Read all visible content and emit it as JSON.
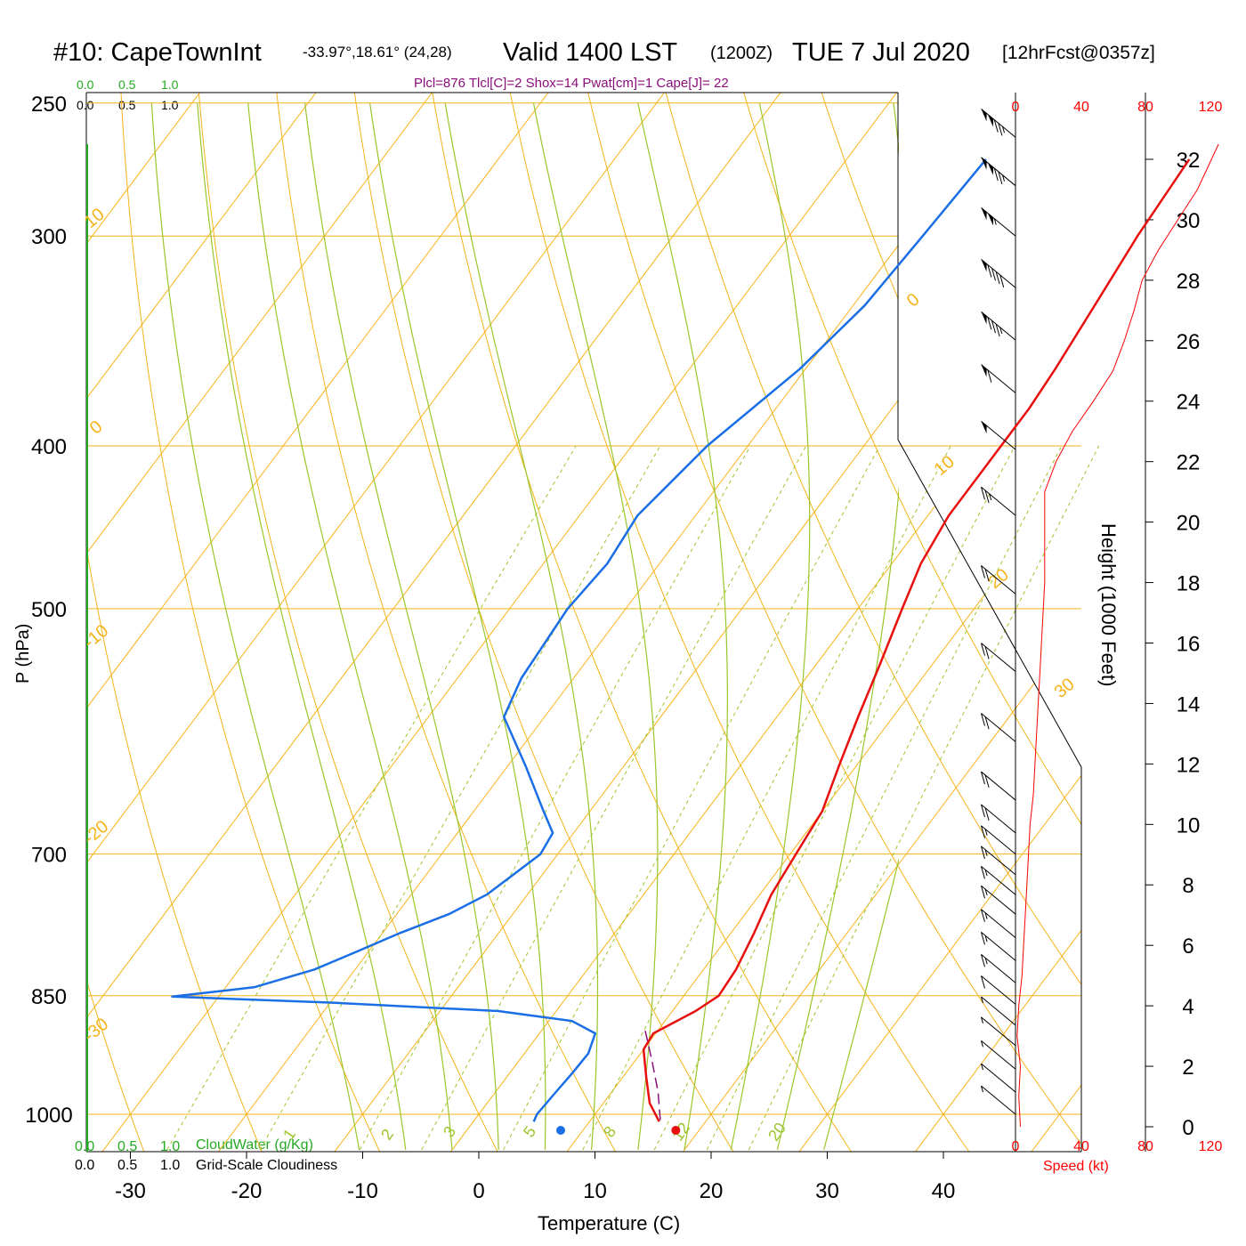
{
  "header": {
    "station": "#10: CapeTownInt",
    "coords": "-33.97°,18.61° (24,28)",
    "valid": "Valid 1400 LST",
    "zulu": "(1200Z)",
    "date": "TUE 7 Jul 2020",
    "forecast": "[12hrFcst@0357z]",
    "indices": "Plcl=876 Tlcl[C]=2 Shox=14 Pwat[cm]=1 Cape[J]= 22"
  },
  "colors": {
    "temperature": "#e8100f",
    "dewpoint": "#1a6ee6",
    "isotherm": "#f5b319",
    "moist_adiabat": "#9bc52a",
    "mixing_ratio": "#9bc52a",
    "parcel": "#8a0f7a",
    "speed": "#ff0000",
    "cloud": "#22aa22"
  },
  "chart_data": {
    "type": "line",
    "title": "#10: CapeTownInt",
    "xlabel": "Temperature (C)",
    "ylabel": "P (hPa)",
    "y2label": "Height (1000 Feet)",
    "xticks": [
      "-30",
      "-20",
      "-10",
      "0",
      "10",
      "20",
      "30",
      "40"
    ],
    "xtick_values": [
      -30,
      -20,
      -10,
      0,
      10,
      20,
      30,
      40
    ],
    "pressure_ticks": [
      "250",
      "300",
      "400",
      "500",
      "700",
      "850",
      "1000"
    ],
    "pressure_values": [
      250,
      300,
      400,
      500,
      700,
      850,
      1000
    ],
    "height_ticks": [
      "0",
      "2",
      "4",
      "6",
      "8",
      "10",
      "12",
      "14",
      "16",
      "18",
      "20",
      "22",
      "24",
      "26",
      "28",
      "30",
      "32"
    ],
    "height_values": [
      0,
      2,
      4,
      6,
      8,
      10,
      12,
      14,
      16,
      18,
      20,
      22,
      24,
      26,
      28,
      30,
      32
    ],
    "ylim": [
      1050,
      250
    ],
    "xlim": [
      -34,
      36
    ],
    "series": [
      {
        "name": "temperature",
        "points": [
          [
            16.0,
            1010
          ],
          [
            14.0,
            985
          ],
          [
            12.0,
            950
          ],
          [
            10.0,
            915
          ],
          [
            9.8,
            895
          ],
          [
            12.0,
            868
          ],
          [
            13.0,
            850
          ],
          [
            12.8,
            820
          ],
          [
            12.0,
            780
          ],
          [
            11.0,
            740
          ],
          [
            10.5,
            700
          ],
          [
            10.0,
            660
          ],
          [
            8.5,
            620
          ],
          [
            7.0,
            580
          ],
          [
            5.5,
            540
          ],
          [
            3.8,
            500
          ],
          [
            2.5,
            470
          ],
          [
            1.8,
            440
          ],
          [
            1.8,
            410
          ],
          [
            1.8,
            380
          ],
          [
            1.5,
            360
          ],
          [
            0.8,
            330
          ],
          [
            0.0,
            300
          ],
          [
            -0.5,
            270
          ]
        ]
      },
      {
        "name": "dewpoint",
        "points": [
          [
            5.2,
            1010
          ],
          [
            5.0,
            1000
          ],
          [
            5.2,
            970
          ],
          [
            5.4,
            945
          ],
          [
            5.5,
            920
          ],
          [
            4.8,
            895
          ],
          [
            2.0,
            880
          ],
          [
            -5.0,
            868
          ],
          [
            -20.0,
            858
          ],
          [
            -34.0,
            851
          ],
          [
            -27.5,
            840
          ],
          [
            -23.5,
            820
          ],
          [
            -21.0,
            800
          ],
          [
            -18.5,
            780
          ],
          [
            -15.5,
            760
          ],
          [
            -13.5,
            740
          ],
          [
            -12.5,
            720
          ],
          [
            -11.5,
            700
          ],
          [
            -11.8,
            680
          ],
          [
            -14.0,
            660
          ],
          [
            -18.5,
            620
          ],
          [
            -23.5,
            580
          ],
          [
            -24.5,
            550
          ],
          [
            -25.0,
            500
          ],
          [
            -24.5,
            470
          ],
          [
            -25.0,
            440
          ],
          [
            -23.5,
            400
          ],
          [
            -20.5,
            360
          ],
          [
            -19.0,
            330
          ],
          [
            -18.5,
            300
          ],
          [
            -18.0,
            270
          ]
        ]
      },
      {
        "name": "parcel",
        "points": [
          [
            16.0,
            1008
          ],
          [
            14.0,
            970
          ],
          [
            11.5,
            930
          ],
          [
            9.5,
            900
          ],
          [
            8.8,
            890
          ]
        ]
      },
      {
        "name": "wind_speed_kt",
        "points": [
          [
            3,
            0
          ],
          [
            2,
            1
          ],
          [
            3,
            2
          ],
          [
            1,
            3
          ],
          [
            2,
            4
          ],
          [
            4,
            5
          ],
          [
            5,
            6
          ],
          [
            6,
            7
          ],
          [
            7,
            8
          ],
          [
            8,
            9
          ],
          [
            9,
            10
          ],
          [
            11,
            11
          ],
          [
            12,
            12
          ],
          [
            13,
            13
          ],
          [
            14,
            14
          ],
          [
            15,
            15
          ],
          [
            16,
            16
          ],
          [
            17,
            17
          ],
          [
            18,
            18
          ],
          [
            18,
            19
          ],
          [
            18,
            20
          ],
          [
            18,
            21
          ],
          [
            25,
            22
          ],
          [
            35,
            23
          ],
          [
            48,
            24
          ],
          [
            60,
            25
          ],
          [
            67,
            26
          ],
          [
            73,
            27
          ],
          [
            78,
            28
          ],
          [
            88,
            29
          ],
          [
            100,
            30
          ],
          [
            112,
            31
          ],
          [
            125,
            32.5
          ]
        ]
      }
    ],
    "surface_temperature": 16.5,
    "surface_dewpoint": 7.0,
    "isotherm_labels": [
      "10",
      "0",
      "-10",
      "-20",
      "-30",
      "0",
      "10",
      "20",
      "30"
    ],
    "mixing_ratio_labels": [
      "1",
      "2",
      "3",
      "5",
      "8",
      "12",
      "20"
    ],
    "speed_axis_label": "Speed (kt)",
    "speed_ticks": [
      "0",
      "40",
      "80",
      "120"
    ],
    "cloud_scale_ticks": [
      "0.0",
      "0.5",
      "1.0"
    ],
    "cloud_water_label": "CloudWater (g/Kg)",
    "cloudiness_label": "Grid-Scale Cloudiness",
    "wind_barbs": [
      {
        "p": 262,
        "speed": 125
      },
      {
        "p": 280,
        "speed": 125
      },
      {
        "p": 300,
        "speed": 105
      },
      {
        "p": 322,
        "speed": 90
      },
      {
        "p": 346,
        "speed": 85
      },
      {
        "p": 372,
        "speed": 60
      },
      {
        "p": 402,
        "speed": 50
      },
      {
        "p": 440,
        "speed": 25
      },
      {
        "p": 490,
        "speed": 20
      },
      {
        "p": 545,
        "speed": 20
      },
      {
        "p": 600,
        "speed": 20
      },
      {
        "p": 650,
        "speed": 20
      },
      {
        "p": 680,
        "speed": 20
      },
      {
        "p": 700,
        "speed": 15
      },
      {
        "p": 720,
        "speed": 15
      },
      {
        "p": 740,
        "speed": 15
      },
      {
        "p": 760,
        "speed": 15
      },
      {
        "p": 785,
        "speed": 15
      },
      {
        "p": 810,
        "speed": 15
      },
      {
        "p": 835,
        "speed": 15
      },
      {
        "p": 860,
        "speed": 10
      },
      {
        "p": 885,
        "speed": 5
      },
      {
        "p": 910,
        "speed": 5
      },
      {
        "p": 940,
        "speed": 5
      },
      {
        "p": 970,
        "speed": 5
      },
      {
        "p": 1000,
        "speed": 5
      }
    ]
  }
}
